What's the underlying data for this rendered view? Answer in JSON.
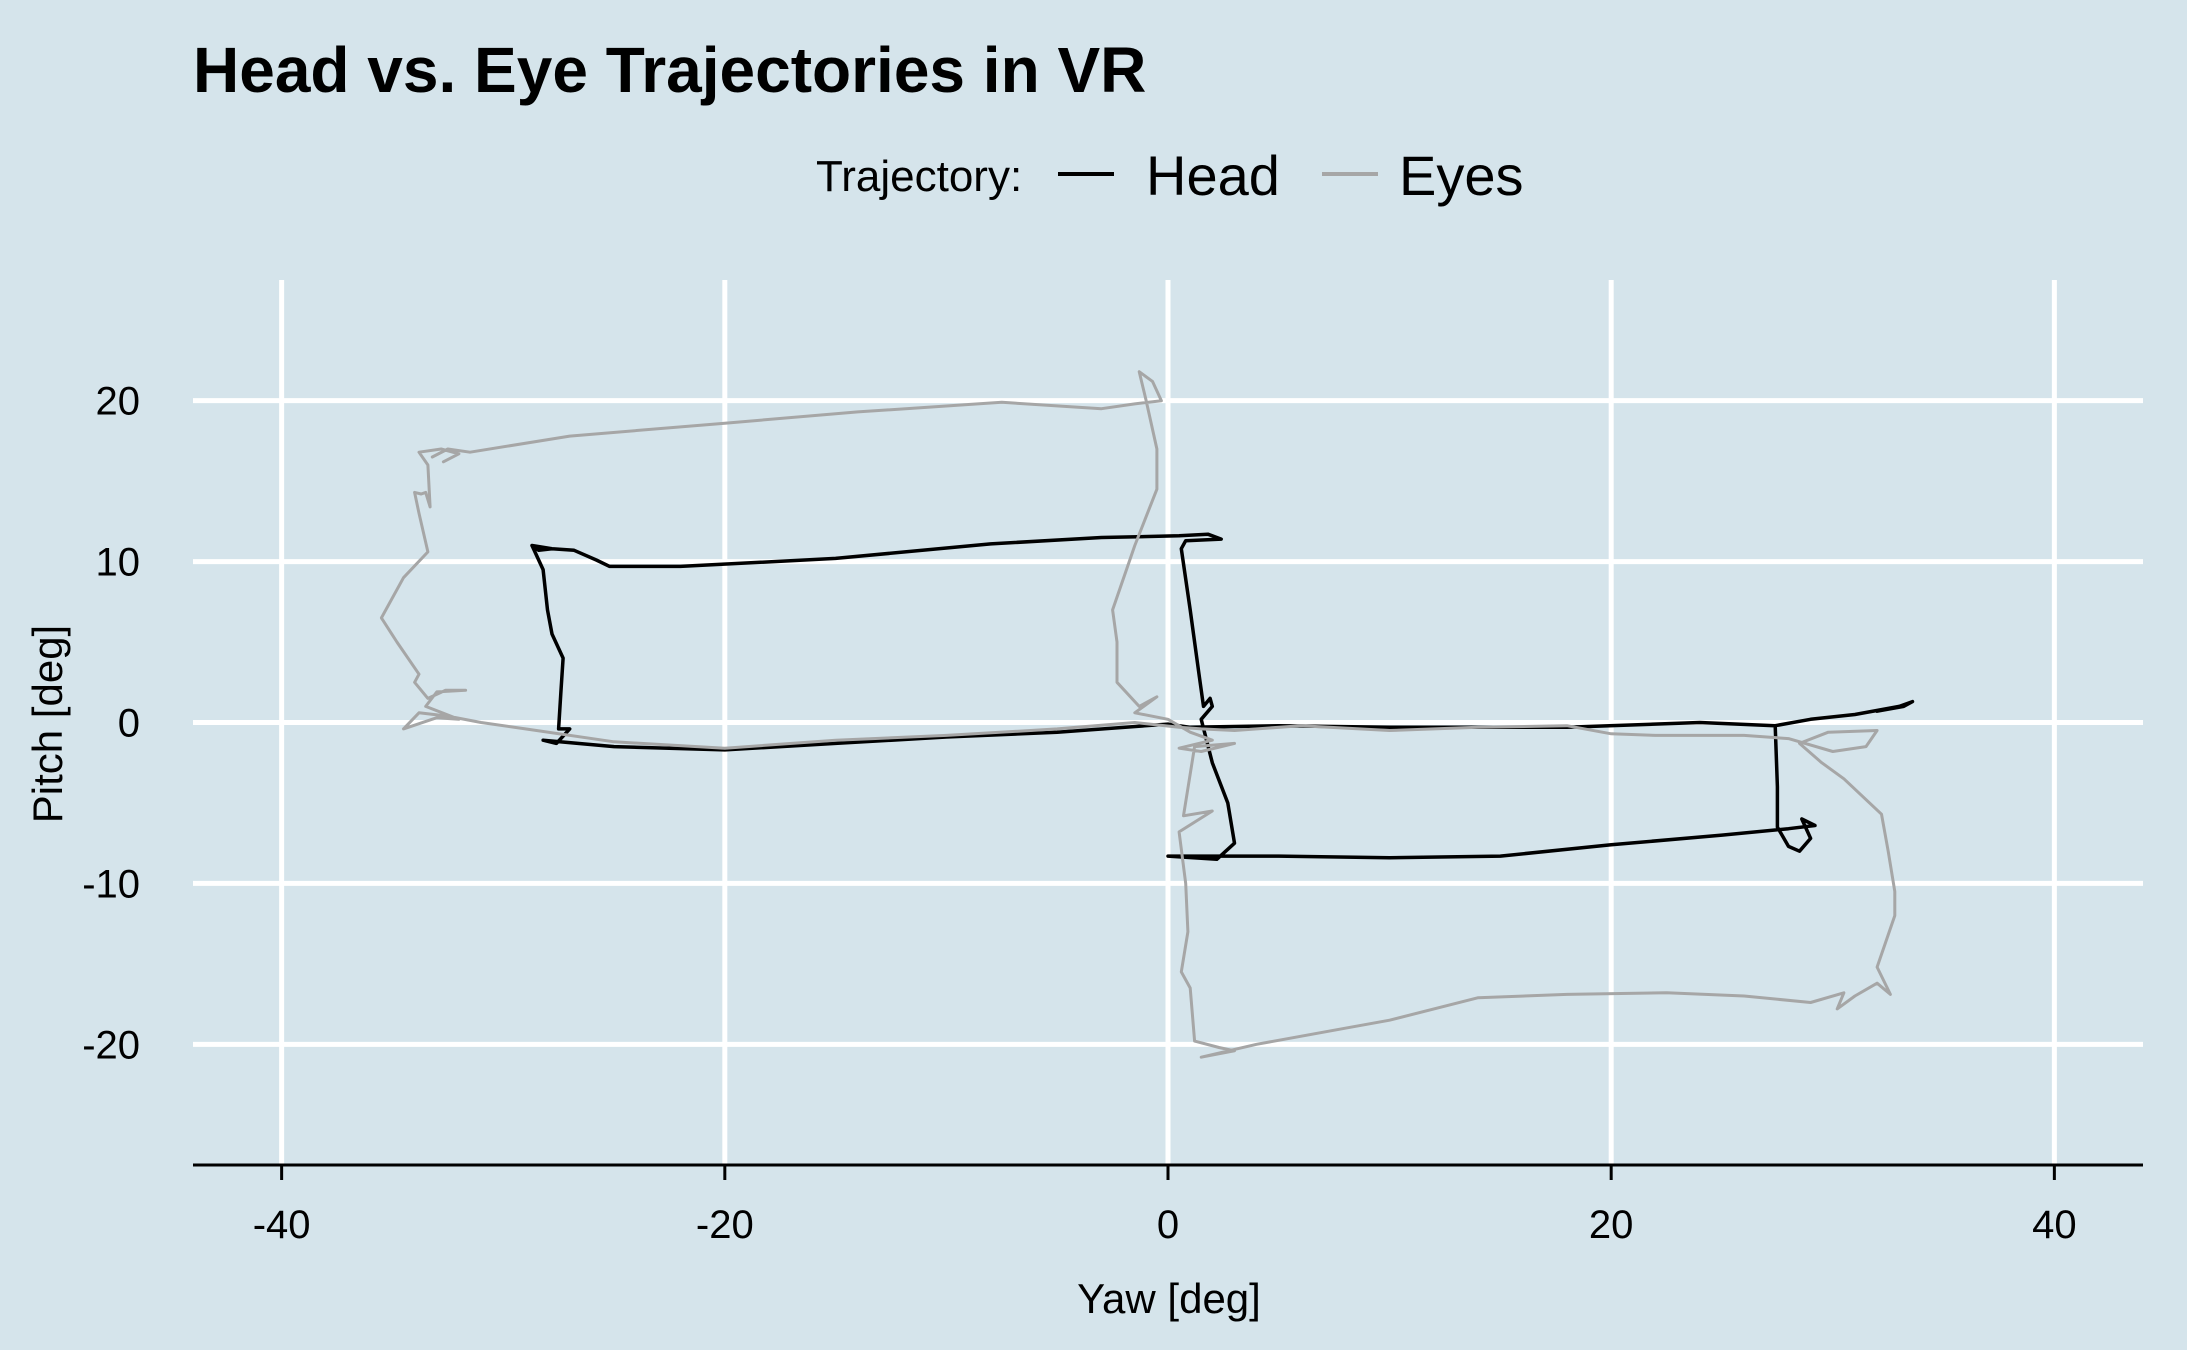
{
  "chart_data": {
    "type": "line",
    "title": "Head vs. Eye Trajectories in VR",
    "xlabel": "Yaw [deg]",
    "ylabel": "Pitch [deg]",
    "xlim": [
      -44,
      44
    ],
    "ylim": [
      -27.5,
      27.5
    ],
    "x_ticks": [
      -40,
      -20,
      0,
      20,
      40
    ],
    "y_ticks": [
      -20,
      -10,
      0,
      10,
      20
    ],
    "grid": true,
    "legend": {
      "title": "Trajectory:",
      "position": "top-center",
      "entries": [
        "Head",
        "Eyes"
      ]
    },
    "series": [
      {
        "name": "Head",
        "color": "#000000",
        "points": [
          [
            -28.7,
            11.0
          ],
          [
            -27.8,
            10.8
          ],
          [
            -26.8,
            10.7
          ],
          [
            -25.8,
            10.1
          ],
          [
            -25.2,
            9.7
          ],
          [
            -22.0,
            9.7
          ],
          [
            -15.0,
            10.2
          ],
          [
            -8.0,
            11.1
          ],
          [
            -3.0,
            11.5
          ],
          [
            0.5,
            11.6
          ],
          [
            1.8,
            11.7
          ],
          [
            2.4,
            11.4
          ],
          [
            0.8,
            11.3
          ],
          [
            0.6,
            10.8
          ],
          [
            1.0,
            7.0
          ],
          [
            1.4,
            3.0
          ],
          [
            1.6,
            1.0
          ],
          [
            1.9,
            1.5
          ],
          [
            2.0,
            1.0
          ],
          [
            1.5,
            0.2
          ],
          [
            2.0,
            -2.5
          ],
          [
            2.7,
            -5.0
          ],
          [
            3.0,
            -7.5
          ],
          [
            2.2,
            -8.5
          ],
          [
            0.0,
            -8.3
          ],
          [
            5.0,
            -8.3
          ],
          [
            10.0,
            -8.4
          ],
          [
            15.0,
            -8.3
          ],
          [
            20.0,
            -7.6
          ],
          [
            25.0,
            -7.0
          ],
          [
            28.0,
            -6.6
          ],
          [
            29.2,
            -6.4
          ],
          [
            28.6,
            -6.0
          ],
          [
            29.0,
            -7.2
          ],
          [
            28.5,
            -8.0
          ],
          [
            28.0,
            -7.7
          ],
          [
            27.5,
            -6.5
          ],
          [
            27.5,
            -4.0
          ],
          [
            27.4,
            -0.2
          ],
          [
            24.0,
            0.0
          ],
          [
            18.0,
            -0.3
          ],
          [
            10.0,
            -0.3
          ],
          [
            5.0,
            -0.2
          ],
          [
            1.0,
            -0.3
          ],
          [
            0.0,
            -0.1
          ],
          [
            -5.0,
            -0.6
          ],
          [
            -10.0,
            -0.9
          ],
          [
            -15.0,
            -1.3
          ],
          [
            -20.0,
            -1.7
          ],
          [
            -25.0,
            -1.5
          ],
          [
            -28.2,
            -1.1
          ],
          [
            -27.6,
            -1.3
          ],
          [
            -27.0,
            -0.4
          ],
          [
            -27.5,
            -0.4
          ],
          [
            -27.4,
            1.8
          ],
          [
            -27.3,
            4.0
          ],
          [
            -27.8,
            5.5
          ],
          [
            -28.0,
            7.0
          ],
          [
            -28.2,
            9.5
          ],
          [
            -28.7,
            11.0
          ],
          [
            -28.4,
            10.7
          ],
          [
            -27.8,
            10.8
          ]
        ]
      },
      {
        "name": "Head",
        "color": "#000000",
        "points": [
          [
            27.4,
            -0.2
          ],
          [
            29.0,
            0.2
          ],
          [
            31.0,
            0.5
          ],
          [
            33.0,
            1.0
          ],
          [
            33.6,
            1.3
          ],
          [
            33.2,
            1.0
          ],
          [
            32.0,
            0.7
          ]
        ]
      },
      {
        "name": "Eyes",
        "color": "#a6a6a6",
        "points": [
          [
            -33.2,
            16.5
          ],
          [
            -32.5,
            17.0
          ],
          [
            -31.5,
            16.8
          ],
          [
            -27.0,
            17.8
          ],
          [
            -20.0,
            18.6
          ],
          [
            -14.0,
            19.3
          ],
          [
            -7.5,
            19.9
          ],
          [
            -3.0,
            19.5
          ],
          [
            -1.5,
            19.8
          ],
          [
            -0.3,
            20.0
          ],
          [
            -0.7,
            21.2
          ],
          [
            -1.3,
            21.8
          ],
          [
            -1.0,
            20.1
          ],
          [
            -0.5,
            17.0
          ],
          [
            -0.5,
            14.5
          ],
          [
            -1.5,
            11.0
          ],
          [
            -2.5,
            7.0
          ],
          [
            -2.3,
            5.0
          ],
          [
            -2.3,
            2.5
          ],
          [
            -1.3,
            1.0
          ],
          [
            -0.5,
            1.6
          ],
          [
            -1.5,
            0.6
          ],
          [
            0.0,
            0.2
          ],
          [
            1.0,
            -0.6
          ],
          [
            2.0,
            -1.1
          ],
          [
            0.5,
            -1.6
          ],
          [
            1.5,
            -1.8
          ],
          [
            3.0,
            -1.3
          ],
          [
            1.2,
            -1.5
          ],
          [
            0.7,
            -5.8
          ],
          [
            2.0,
            -5.5
          ],
          [
            0.5,
            -6.8
          ],
          [
            0.8,
            -10.0
          ],
          [
            0.9,
            -13.0
          ],
          [
            0.6,
            -15.5
          ],
          [
            1.0,
            -16.5
          ],
          [
            1.2,
            -19.8
          ],
          [
            2.3,
            -20.2
          ],
          [
            3.0,
            -20.4
          ],
          [
            1.5,
            -20.8
          ],
          [
            4.0,
            -20.0
          ],
          [
            8.0,
            -19.0
          ],
          [
            10.0,
            -18.5
          ],
          [
            14.0,
            -17.1
          ],
          [
            18.0,
            -16.9
          ],
          [
            22.5,
            -16.8
          ],
          [
            26.0,
            -17.0
          ],
          [
            29.0,
            -17.4
          ],
          [
            30.5,
            -16.8
          ],
          [
            30.2,
            -17.8
          ],
          [
            31.0,
            -17.0
          ],
          [
            32.0,
            -16.2
          ],
          [
            32.6,
            -16.9
          ],
          [
            32.0,
            -15.2
          ],
          [
            32.8,
            -12.0
          ],
          [
            32.8,
            -10.5
          ],
          [
            32.5,
            -8.0
          ],
          [
            32.2,
            -5.7
          ],
          [
            30.5,
            -3.5
          ],
          [
            29.5,
            -2.5
          ],
          [
            28.5,
            -1.3
          ],
          [
            29.8,
            -0.6
          ],
          [
            32.0,
            -0.5
          ],
          [
            31.5,
            -1.5
          ],
          [
            30.0,
            -1.8
          ],
          [
            28.0,
            -1.0
          ],
          [
            26.0,
            -0.8
          ],
          [
            22.0,
            -0.8
          ],
          [
            20.0,
            -0.7
          ],
          [
            18.0,
            -0.2
          ],
          [
            14.0,
            -0.3
          ],
          [
            10.0,
            -0.5
          ],
          [
            6.0,
            -0.2
          ],
          [
            3.0,
            -0.5
          ],
          [
            1.5,
            -0.4
          ],
          [
            0.5,
            -0.3
          ],
          [
            -1.5,
            0.0
          ],
          [
            -5.0,
            -0.4
          ],
          [
            -10.0,
            -0.8
          ],
          [
            -15.0,
            -1.1
          ],
          [
            -20.0,
            -1.6
          ],
          [
            -25.0,
            -1.2
          ],
          [
            -29.0,
            -0.4
          ],
          [
            -31.0,
            0.0
          ],
          [
            -32.5,
            0.4
          ],
          [
            -33.8,
            0.6
          ],
          [
            -34.5,
            -0.4
          ],
          [
            -33.0,
            0.3
          ],
          [
            -32.0,
            0.2
          ],
          [
            -33.5,
            1.0
          ],
          [
            -33.0,
            1.9
          ],
          [
            -31.7,
            2.0
          ],
          [
            -32.6,
            2.0
          ],
          [
            -33.4,
            1.5
          ],
          [
            -34.0,
            2.5
          ],
          [
            -33.8,
            3.0
          ],
          [
            -34.8,
            5.0
          ],
          [
            -35.5,
            6.5
          ],
          [
            -34.5,
            9.0
          ],
          [
            -33.4,
            10.6
          ],
          [
            -33.8,
            13.0
          ],
          [
            -34.0,
            14.3
          ],
          [
            -33.7,
            14.2
          ],
          [
            -33.5,
            14.3
          ],
          [
            -33.3,
            13.4
          ],
          [
            -33.4,
            16.0
          ],
          [
            -33.8,
            16.8
          ],
          [
            -32.8,
            17.0
          ],
          [
            -32.0,
            16.7
          ],
          [
            -32.7,
            16.2
          ]
        ]
      }
    ]
  }
}
